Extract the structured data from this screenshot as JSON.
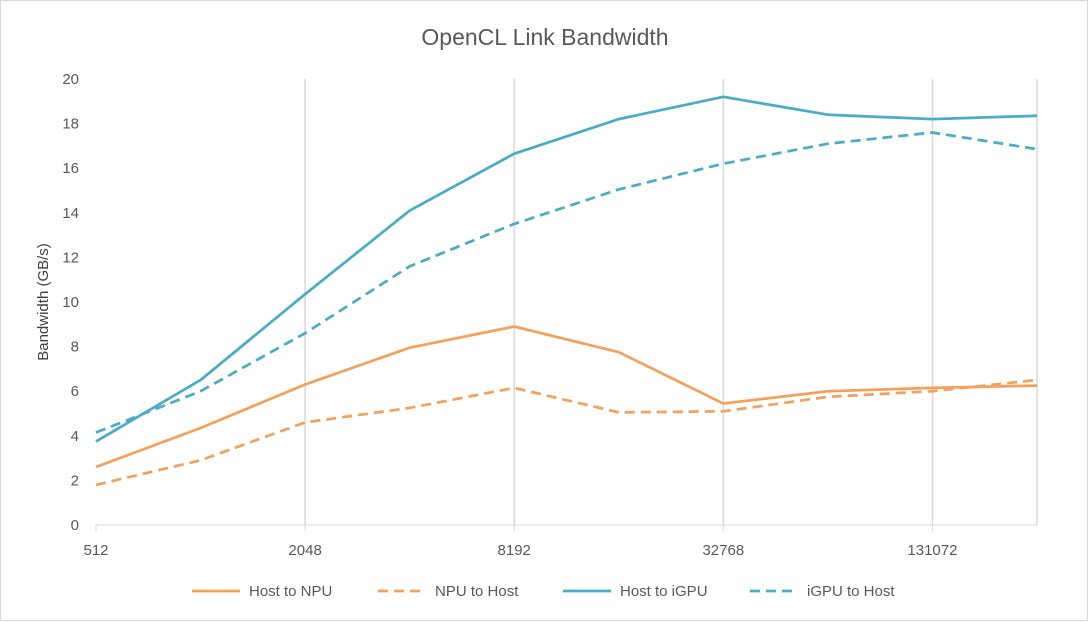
{
  "chart_data": {
    "type": "line",
    "title": "OpenCL Link Bandwidth",
    "xlabel": "",
    "ylabel": "Bandwidth (GB/s)",
    "x_scale": "log2",
    "x": [
      512,
      1024,
      2048,
      4096,
      8192,
      16384,
      32768,
      65536,
      131072,
      262144
    ],
    "x_ticks": [
      "512",
      "2048",
      "8192",
      "32768",
      "131072"
    ],
    "xlim": [
      512,
      262144
    ],
    "ylim": [
      0,
      20
    ],
    "y_ticks": [
      "0",
      "2",
      "4",
      "6",
      "8",
      "10",
      "12",
      "14",
      "16",
      "18",
      "20"
    ],
    "grid": "vertical",
    "legend_position": "bottom",
    "series": [
      {
        "name": "Host to NPU",
        "color": "#f4a15d",
        "dash": "solid",
        "values": [
          2.6,
          4.35,
          6.3,
          7.95,
          8.9,
          7.75,
          5.45,
          6.0,
          6.15,
          6.25
        ]
      },
      {
        "name": "NPU to Host",
        "color": "#f4a15d",
        "dash": "dashed",
        "values": [
          1.8,
          2.9,
          4.6,
          5.25,
          6.15,
          5.05,
          5.1,
          5.75,
          6.0,
          6.5
        ]
      },
      {
        "name": "Host to iGPU",
        "color": "#4bacc6",
        "dash": "solid",
        "values": [
          3.75,
          6.5,
          10.35,
          14.1,
          16.65,
          18.2,
          19.2,
          18.4,
          18.2,
          18.35
        ]
      },
      {
        "name": "iGPU to Host",
        "color": "#4bacc6",
        "dash": "dashed",
        "values": [
          4.15,
          6.0,
          8.6,
          11.6,
          13.5,
          15.05,
          16.2,
          17.1,
          17.6,
          16.85
        ]
      }
    ]
  }
}
